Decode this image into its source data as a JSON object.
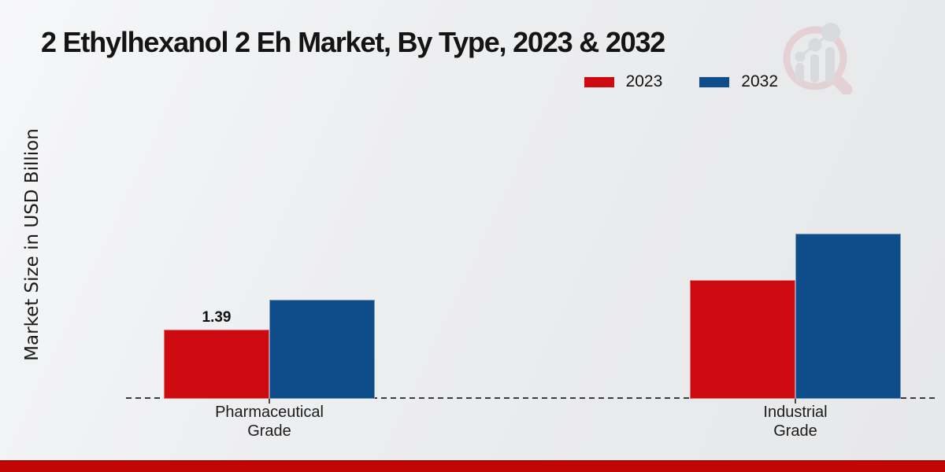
{
  "chart_data": {
    "type": "bar",
    "title": "2 Ethylhexanol 2 Eh Market, By Type, 2023 & 2032",
    "ylabel": "Market Size in USD Billion",
    "xlabel": "",
    "categories": [
      "Pharmaceutical\nGrade",
      "Industrial\nGrade"
    ],
    "series": [
      {
        "name": "2023",
        "color": "#cc0a10",
        "values": [
          1.39,
          2.39
        ]
      },
      {
        "name": "2032",
        "color": "#0f4c8a",
        "values": [
          2.0,
          3.33
        ]
      }
    ],
    "data_labels": [
      {
        "series_index": 0,
        "category_index": 0,
        "text": "1.39"
      }
    ],
    "legend_position": "top-right",
    "grid": false,
    "axis_baseline": "dashed",
    "ylim": [
      0,
      4
    ]
  },
  "branding": {
    "watermark_icon": "magnifier-bar-chart-logo",
    "bottom_bar_color": "#c20606"
  }
}
